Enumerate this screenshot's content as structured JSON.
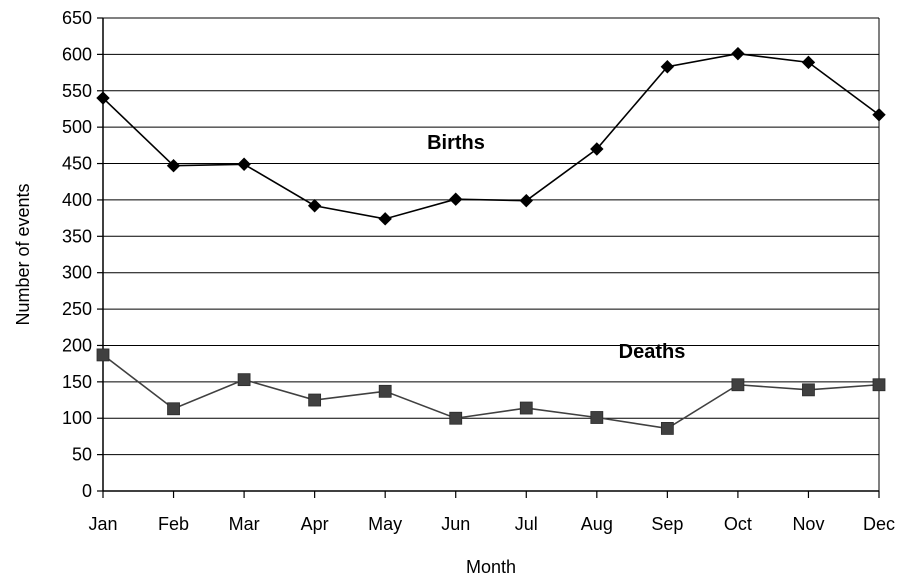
{
  "chart_data": {
    "type": "line",
    "categories": [
      "Jan",
      "Feb",
      "Mar",
      "Apr",
      "May",
      "Jun",
      "Jul",
      "Aug",
      "Sep",
      "Oct",
      "Nov",
      "Dec"
    ],
    "series": [
      {
        "name": "Births",
        "values": [
          540,
          447,
          449,
          392,
          374,
          401,
          399,
          470,
          583,
          601,
          589,
          517
        ],
        "marker": "diamond",
        "color": "#000000"
      },
      {
        "name": "Deaths",
        "values": [
          187,
          113,
          153,
          125,
          137,
          100,
          114,
          101,
          86,
          146,
          139,
          146
        ],
        "marker": "square",
        "color": "#404040"
      }
    ],
    "xlabel": "Month",
    "ylabel": "Number of events",
    "ylim": [
      0,
      650
    ],
    "yticks": [
      0,
      50,
      100,
      150,
      200,
      250,
      300,
      350,
      400,
      450,
      500,
      550,
      600,
      650
    ],
    "grid": "horizontal",
    "legend": "none"
  }
}
